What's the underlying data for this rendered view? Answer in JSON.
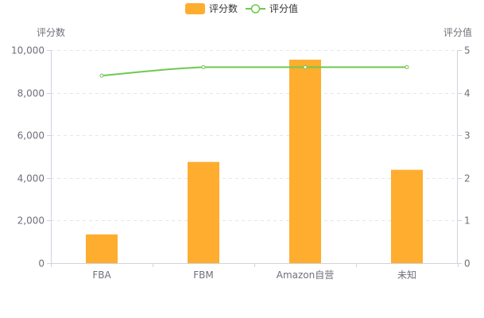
{
  "chart_data": {
    "type": "bar",
    "categories": [
      "FBA",
      "FBM",
      "Amazon自营",
      "未知"
    ],
    "series": [
      {
        "name": "评分数",
        "type": "bar",
        "axis": "left",
        "color": "#ffad2f",
        "values": [
          1350,
          4750,
          9550,
          4380
        ]
      },
      {
        "name": "评分值",
        "type": "line",
        "axis": "right",
        "color": "#6ec94f",
        "smooth": true,
        "values": [
          4.4,
          4.6,
          4.6,
          4.6
        ]
      }
    ],
    "y_left": {
      "label": "评分数",
      "min": 0,
      "max": 10000,
      "ticks": [
        0,
        2000,
        4000,
        6000,
        8000,
        10000
      ],
      "tick_labels": [
        "0",
        "2,000",
        "4,000",
        "6,000",
        "8,000",
        "10,000"
      ]
    },
    "y_right": {
      "label": "评分值",
      "min": 0,
      "max": 5,
      "ticks": [
        0,
        1,
        2,
        3,
        4,
        5
      ],
      "tick_labels": [
        "0",
        "1",
        "2",
        "3",
        "4",
        "5"
      ]
    },
    "grid": true,
    "legend_position": "top-center"
  }
}
